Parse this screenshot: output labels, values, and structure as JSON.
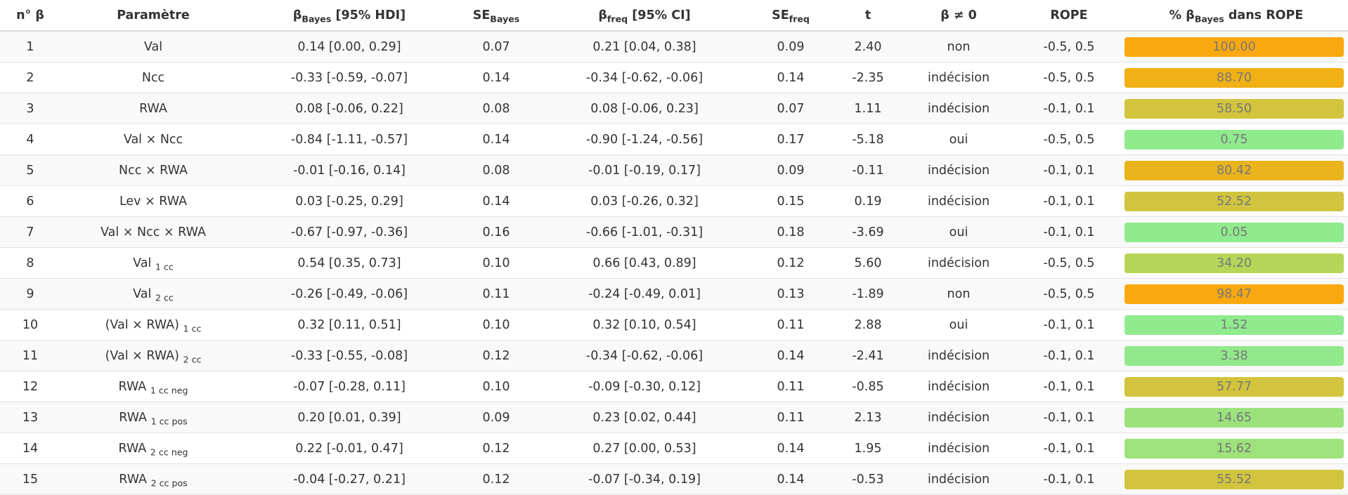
{
  "header": {
    "n_beta": "n° β",
    "parametre": "Paramètre",
    "b_bayes_main": "β",
    "b_bayes_sub": "Bayes",
    "b_bayes_rest": " [95% HDI]",
    "se_bayes_main": "SE",
    "se_bayes_sub": "Bayes",
    "b_freq_main": "β",
    "b_freq_sub": "freq",
    "b_freq_rest": " [95% CI]",
    "se_freq_main": "SE",
    "se_freq_sub": "freq",
    "t": "t",
    "beta_ne_0": "β ≠ 0",
    "rope": "ROPE",
    "pct_pre": "% β",
    "pct_sub": "Bayes",
    "pct_post": " dans ROPE"
  },
  "rows": [
    {
      "n": "1",
      "param": "Val",
      "param_sub": "",
      "b_bayes": "0.14 [0.00, 0.29]",
      "se_bayes": "0.07",
      "b_freq": "0.21 [0.04, 0.38]",
      "se_freq": "0.09",
      "t": "2.40",
      "decision": "non",
      "rope": "-0.5, 0.5",
      "pct": "100.00",
      "pct_value": 100.0,
      "color": "#F9A80F"
    },
    {
      "n": "2",
      "param": "Ncc",
      "param_sub": "",
      "b_bayes": "-0.33 [-0.59, -0.07]",
      "se_bayes": "0.14",
      "b_freq": "-0.34 [-0.62, -0.06]",
      "se_freq": "0.14",
      "t": "-2.35",
      "decision": "indécision",
      "rope": "-0.5, 0.5",
      "pct": "88.70",
      "pct_value": 88.7,
      "color": "#F0B016"
    },
    {
      "n": "3",
      "param": "RWA",
      "param_sub": "",
      "b_bayes": "0.08 [-0.06, 0.22]",
      "se_bayes": "0.08",
      "b_freq": "0.08 [-0.06, 0.23]",
      "se_freq": "0.07",
      "t": "1.11",
      "decision": "indécision",
      "rope": "-0.1, 0.1",
      "pct": "58.50",
      "pct_value": 58.5,
      "color": "#D3C43D"
    },
    {
      "n": "4",
      "param": "Val × Ncc",
      "param_sub": "",
      "b_bayes": "-0.84 [-1.11, -0.57]",
      "se_bayes": "0.14",
      "b_freq": "-0.90 [-1.24, -0.56]",
      "se_freq": "0.17",
      "t": "-5.18",
      "decision": "oui",
      "rope": "-0.5, 0.5",
      "pct": "0.75",
      "pct_value": 0.75,
      "color": "#90EA8E"
    },
    {
      "n": "5",
      "param": "Ncc × RWA",
      "param_sub": "",
      "b_bayes": "-0.01 [-0.16, 0.14]",
      "se_bayes": "0.08",
      "b_freq": "-0.01 [-0.19, 0.17]",
      "se_freq": "0.09",
      "t": "-0.11",
      "decision": "indécision",
      "rope": "-0.1, 0.1",
      "pct": "80.42",
      "pct_value": 80.42,
      "color": "#E9B41D"
    },
    {
      "n": "6",
      "param": "Lev × RWA",
      "param_sub": "",
      "b_bayes": "0.03 [-0.25, 0.29]",
      "se_bayes": "0.14",
      "b_freq": "0.03 [-0.26, 0.32]",
      "se_freq": "0.15",
      "t": "0.19",
      "decision": "indécision",
      "rope": "-0.1, 0.1",
      "pct": "52.52",
      "pct_value": 52.52,
      "color": "#D1C53F"
    },
    {
      "n": "7",
      "param": "Val × Ncc × RWA",
      "param_sub": "",
      "b_bayes": "-0.67 [-0.97, -0.36]",
      "se_bayes": "0.16",
      "b_freq": "-0.66 [-1.01, -0.31]",
      "se_freq": "0.18",
      "t": "-3.69",
      "decision": "oui",
      "rope": "-0.1, 0.1",
      "pct": "0.05",
      "pct_value": 0.05,
      "color": "#90EA8E"
    },
    {
      "n": "8",
      "param": "Val",
      "param_sub": "1 cc",
      "b_bayes": "0.54 [0.35, 0.73]",
      "se_bayes": "0.10",
      "b_freq": "0.66 [0.43, 0.89]",
      "se_freq": "0.12",
      "t": "5.60",
      "decision": "indécision",
      "rope": "-0.5, 0.5",
      "pct": "34.20",
      "pct_value": 34.2,
      "color": "#B5D659"
    },
    {
      "n": "9",
      "param": "Val",
      "param_sub": "2 cc",
      "b_bayes": "-0.26 [-0.49, -0.06]",
      "se_bayes": "0.11",
      "b_freq": "-0.24 [-0.49, 0.01]",
      "se_freq": "0.13",
      "t": "-1.89",
      "decision": "non",
      "rope": "-0.5, 0.5",
      "pct": "98.47",
      "pct_value": 98.47,
      "color": "#F9A80F"
    },
    {
      "n": "10",
      "param": "(Val × RWA)",
      "param_sub": "1 cc",
      "b_bayes": "0.32 [0.11, 0.51]",
      "se_bayes": "0.10",
      "b_freq": "0.32 [0.10, 0.54]",
      "se_freq": "0.11",
      "t": "2.88",
      "decision": "oui",
      "rope": "-0.1, 0.1",
      "pct": "1.52",
      "pct_value": 1.52,
      "color": "#90EA8E"
    },
    {
      "n": "11",
      "param": "(Val × RWA)",
      "param_sub": "2 cc",
      "b_bayes": "-0.33 [-0.55, -0.08]",
      "se_bayes": "0.12",
      "b_freq": "-0.34 [-0.62, -0.06]",
      "se_freq": "0.14",
      "t": "-2.41",
      "decision": "indécision",
      "rope": "-0.1, 0.1",
      "pct": "3.38",
      "pct_value": 3.38,
      "color": "#92E98B"
    },
    {
      "n": "12",
      "param": "RWA",
      "param_sub": "1 cc neg",
      "b_bayes": "-0.07 [-0.28, 0.11]",
      "se_bayes": "0.10",
      "b_freq": "-0.09 [-0.30, 0.12]",
      "se_freq": "0.11",
      "t": "-0.85",
      "decision": "indécision",
      "rope": "-0.1, 0.1",
      "pct": "57.77",
      "pct_value": 57.77,
      "color": "#D3C43D"
    },
    {
      "n": "13",
      "param": "RWA",
      "param_sub": "1 cc pos",
      "b_bayes": "0.20 [0.01, 0.39]",
      "se_bayes": "0.09",
      "b_freq": "0.23 [0.02, 0.44]",
      "se_freq": "0.11",
      "t": "2.13",
      "decision": "indécision",
      "rope": "-0.1, 0.1",
      "pct": "14.65",
      "pct_value": 14.65,
      "color": "#9BE27D"
    },
    {
      "n": "14",
      "param": "RWA",
      "param_sub": "2 cc neg",
      "b_bayes": "0.22 [-0.01, 0.47]",
      "se_bayes": "0.12",
      "b_freq": "0.27 [0.00, 0.53]",
      "se_freq": "0.14",
      "t": "1.95",
      "decision": "indécision",
      "rope": "-0.1, 0.1",
      "pct": "15.62",
      "pct_value": 15.62,
      "color": "#9DE27B"
    },
    {
      "n": "15",
      "param": "RWA",
      "param_sub": "2 cc pos",
      "b_bayes": "-0.04 [-0.27, 0.21]",
      "se_bayes": "0.12",
      "b_freq": "-0.07 [-0.34, 0.19]",
      "se_freq": "0.14",
      "t": "-0.53",
      "decision": "indécision",
      "rope": "-0.1, 0.1",
      "pct": "55.52",
      "pct_value": 55.52,
      "color": "#D2C43E"
    }
  ]
}
